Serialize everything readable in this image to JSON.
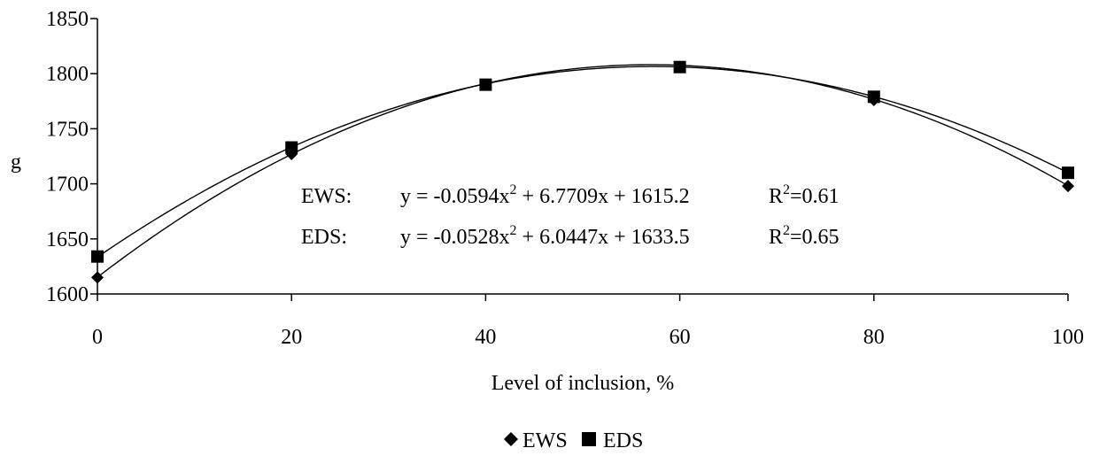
{
  "chart_data": {
    "type": "scatter",
    "title": "",
    "xlabel": "Level of inclusion, %",
    "ylabel": "g",
    "x": [
      0,
      20,
      40,
      60,
      80,
      100
    ],
    "xticks": [
      "0",
      "20",
      "40",
      "60",
      "80",
      "100"
    ],
    "yticks": [
      "1600",
      "1650",
      "1700",
      "1750",
      "1800",
      "1850"
    ],
    "xlim": [
      0,
      100
    ],
    "ylim": [
      1600,
      1850
    ],
    "grid": false,
    "legend_position": "bottom",
    "series": [
      {
        "name": "EWS",
        "marker": "diamond",
        "values": [
          1615,
          1727,
          1790,
          1806,
          1776,
          1698
        ],
        "trendline": {
          "a": -0.0594,
          "b": 6.7709,
          "c": 1615.2
        },
        "eq_label": "EWS:",
        "eq_text_prefix": "y = -0.0594x",
        "eq_text_exp": "2",
        "eq_text_suffix": " + 6.7709x + 1615.2",
        "r2_prefix": "R",
        "r2_exp": "2",
        "r2_suffix": "=0.61"
      },
      {
        "name": "EDS",
        "marker": "square",
        "values": [
          1634,
          1733,
          1790,
          1806,
          1779,
          1710
        ],
        "trendline": {
          "a": -0.0528,
          "b": 6.0447,
          "c": 1633.5
        },
        "eq_label": "EDS:",
        "eq_text_prefix": "y = -0.0528x",
        "eq_text_exp": "2",
        "eq_text_suffix": " + 6.0447x + 1633.5",
        "r2_prefix": "R",
        "r2_exp": "2",
        "r2_suffix": "=0.65"
      }
    ]
  },
  "colors": {
    "axis": "#000000",
    "marker": "#000000",
    "line": "#000000"
  }
}
